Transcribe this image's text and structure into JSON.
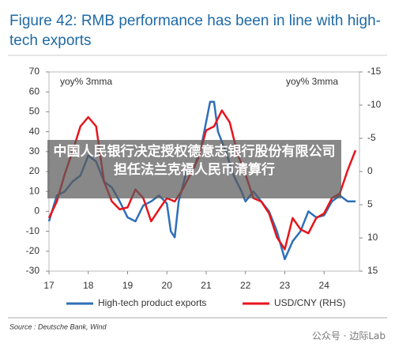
{
  "chart_data": {
    "type": "line",
    "title": "Figure 42: RMB performance has been in line with high-tech exports",
    "ylabel": "yoy% 3mma",
    "y2label": "yoy% 3mma",
    "xlim": [
      17,
      24.9
    ],
    "xticks": [
      17,
      18,
      19,
      20,
      21,
      22,
      23,
      24
    ],
    "ylim": [
      -30,
      70
    ],
    "yticks": [
      70,
      60,
      50,
      40,
      30,
      20,
      10,
      0,
      -10,
      -20,
      -30
    ],
    "y2lim": [
      15,
      -15
    ],
    "y2ticks": [
      -15,
      -10,
      -5,
      0,
      5,
      10,
      15
    ],
    "series": [
      {
        "name": "High-tech product exports",
        "color": "#2f6fb7",
        "x": [
          17.0,
          17.2,
          17.4,
          17.6,
          17.8,
          18.0,
          18.2,
          18.4,
          18.6,
          18.8,
          19.0,
          19.2,
          19.4,
          19.6,
          19.8,
          20.0,
          20.1,
          20.2,
          20.3,
          20.5,
          20.7,
          20.9,
          21.0,
          21.1,
          21.2,
          21.3,
          21.5,
          21.7,
          21.9,
          22.0,
          22.2,
          22.4,
          22.6,
          22.8,
          23.0,
          23.2,
          23.4,
          23.6,
          23.8,
          24.0,
          24.2,
          24.4,
          24.6,
          24.8
        ],
        "values": [
          -5,
          8,
          10,
          15,
          18,
          28,
          25,
          15,
          12,
          5,
          -3,
          -5,
          3,
          5,
          8,
          4,
          -10,
          -13,
          5,
          20,
          22,
          35,
          45,
          55,
          55,
          40,
          30,
          18,
          10,
          5,
          10,
          5,
          0,
          -10,
          -24,
          -15,
          -10,
          0,
          -3,
          -2,
          5,
          8,
          5,
          5
        ]
      },
      {
        "name": "USD/CNY (RHS)",
        "color": "#e8141b",
        "axis": "y2",
        "x": [
          17.0,
          17.2,
          17.4,
          17.6,
          17.8,
          18.0,
          18.2,
          18.4,
          18.6,
          18.8,
          19.0,
          19.2,
          19.4,
          19.6,
          19.8,
          20.0,
          20.2,
          20.4,
          20.6,
          20.8,
          21.0,
          21.2,
          21.4,
          21.6,
          21.8,
          22.0,
          22.2,
          22.4,
          22.6,
          22.8,
          23.0,
          23.2,
          23.4,
          23.6,
          23.8,
          24.0,
          24.2,
          24.4,
          24.6,
          24.8
        ],
        "values": [
          7,
          4.5,
          0.4,
          -3,
          -6.8,
          -8.2,
          -6.8,
          1.5,
          4.5,
          5.7,
          5.4,
          2.7,
          4,
          7.5,
          5.7,
          4,
          4.5,
          2.7,
          0.4,
          -2,
          -6.2,
          -6.8,
          -9.2,
          -7.4,
          -2.6,
          0.4,
          4,
          4.5,
          6.3,
          9.9,
          11.7,
          7,
          8.7,
          9.3,
          7,
          6.3,
          4,
          3.3,
          -0.2,
          -3.2
        ]
      }
    ],
    "source": "Source : Deutsche Bank, Wind"
  },
  "overlay": {
    "text": "中国人民银行决定授权德意志银行股份有限公司担任法兰克福人民币清算行"
  },
  "watermark": {
    "text": "公众号 · 边际Lab"
  }
}
